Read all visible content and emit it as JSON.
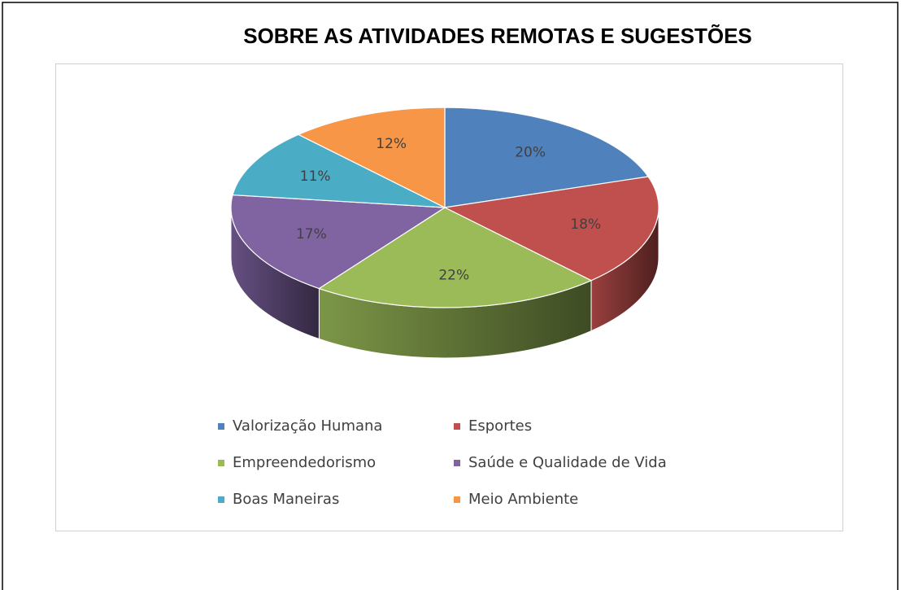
{
  "chart_data": {
    "type": "pie3d",
    "title": "SOBRE AS ATIVIDADES REMOTAS E SUGESTÕES",
    "categories": [
      "Valorização Humana",
      "Esportes",
      "Empreendedorismo",
      "Saúde e Qualidade de Vida",
      "Boas Maneiras",
      "Meio Ambiente"
    ],
    "values": [
      20,
      18,
      22,
      17,
      11,
      12
    ],
    "value_labels": [
      "20%",
      "18%",
      "22%",
      "17%",
      "11%",
      "12%"
    ],
    "colors": [
      "#4f81bd",
      "#c0504d",
      "#9bbb59",
      "#8064a2",
      "#4bacc6",
      "#f79646"
    ],
    "legend": "bottom"
  }
}
